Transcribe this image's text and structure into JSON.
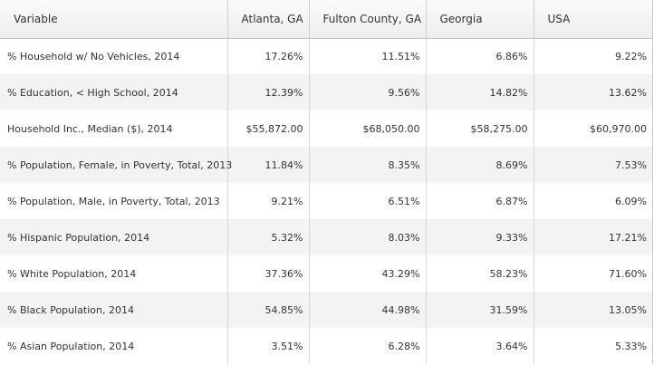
{
  "table": {
    "columns": [
      "Variable",
      "Atlanta, GA",
      "Fulton County, GA",
      "Georgia",
      "USA"
    ],
    "rows": [
      [
        "% Household w/ No Vehicles, 2014",
        "17.26%",
        "11.51%",
        "6.86%",
        "9.22%"
      ],
      [
        "% Education, < High School, 2014",
        "12.39%",
        "9.56%",
        "14.82%",
        "13.62%"
      ],
      [
        "Household Inc., Median ($), 2014",
        "$55,872.00",
        "$68,050.00",
        "$58,275.00",
        "$60,970.00"
      ],
      [
        "% Population, Female, in Poverty, Total, 2013",
        "11.84%",
        "8.35%",
        "8.69%",
        "7.53%"
      ],
      [
        "% Population, Male, in Poverty, Total, 2013",
        "9.21%",
        "6.51%",
        "6.87%",
        "6.09%"
      ],
      [
        "% Hispanic Population, 2014",
        "5.32%",
        "8.03%",
        "9.33%",
        "17.21%"
      ],
      [
        "% White Population, 2014",
        "37.36%",
        "43.29%",
        "58.23%",
        "71.60%"
      ],
      [
        "% Black Population, 2014",
        "54.85%",
        "44.98%",
        "31.59%",
        "13.05%"
      ],
      [
        "% Asian Population, 2014",
        "3.51%",
        "6.28%",
        "3.64%",
        "5.33%"
      ]
    ]
  },
  "colors": {
    "header_bg": "#eeeeee",
    "alt_row_bg": "#f1f3f4",
    "grid_line": "#d9d9d9",
    "text": "#333333"
  }
}
